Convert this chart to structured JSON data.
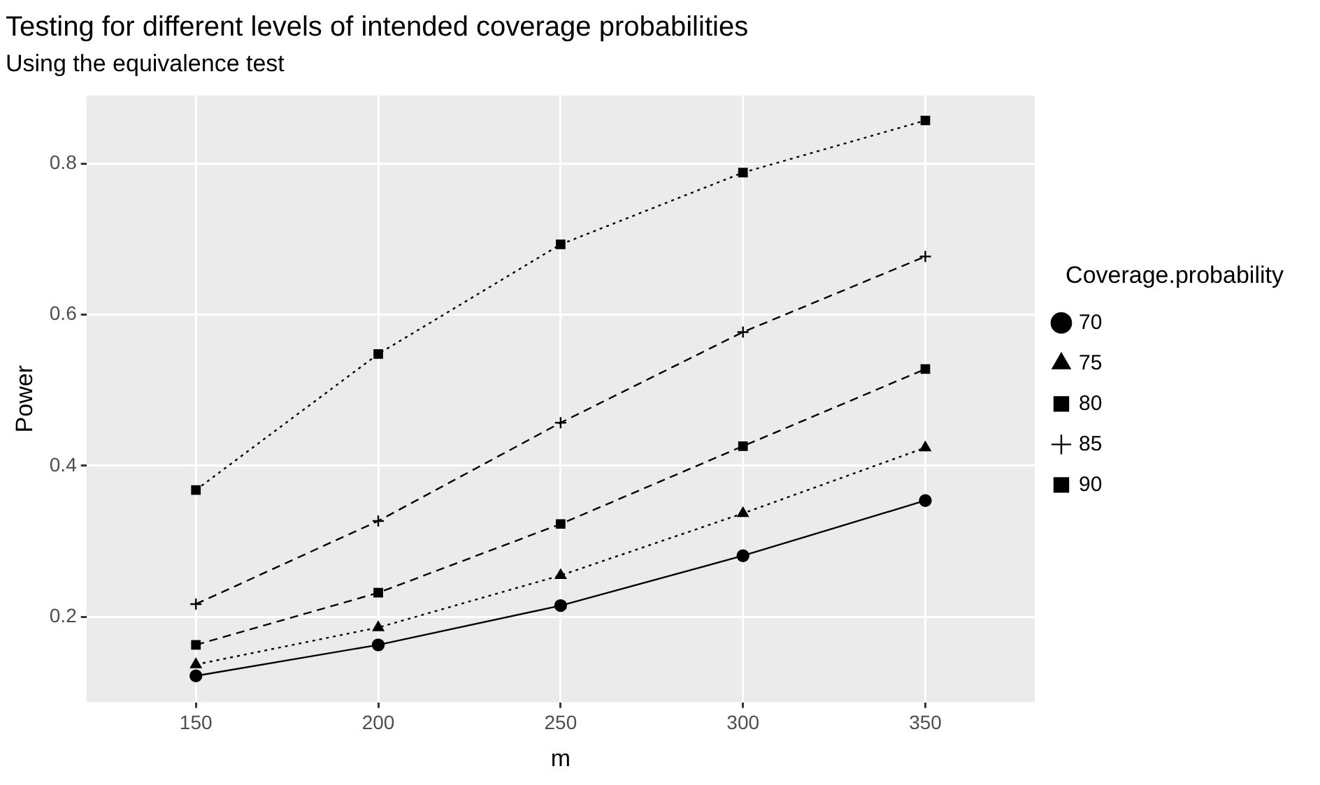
{
  "chart_data": {
    "type": "line",
    "title": "Testing for different levels of intended coverage probabilities",
    "subtitle": "Using the equivalence test",
    "xlabel": "m",
    "ylabel": "Power",
    "legend_title": "Coverage.probability",
    "x": [
      150,
      200,
      250,
      300,
      350
    ],
    "series": [
      {
        "name": "70",
        "color": "#000000",
        "marker": "circle",
        "line_style": "solid",
        "values": [
          0.122,
          0.163,
          0.215,
          0.281,
          0.354
        ]
      },
      {
        "name": "75",
        "color": "#000000",
        "marker": "triangle",
        "line_style": "dotted",
        "values": [
          0.137,
          0.186,
          0.255,
          0.337,
          0.424
        ]
      },
      {
        "name": "80",
        "color": "#000000",
        "marker": "square",
        "line_style": "dashed",
        "values": [
          0.163,
          0.232,
          0.323,
          0.426,
          0.528
        ]
      },
      {
        "name": "85",
        "color": "#000000",
        "marker": "cross",
        "line_style": "dashed",
        "values": [
          0.217,
          0.327,
          0.457,
          0.577,
          0.677
        ]
      },
      {
        "name": "90",
        "color": "#000000",
        "marker": "square",
        "line_style": "dotted",
        "values": [
          0.368,
          0.548,
          0.693,
          0.788,
          0.857
        ]
      }
    ],
    "xlim": [
      120,
      380
    ],
    "xticks": [
      150,
      200,
      250,
      300,
      350
    ],
    "ylim": [
      0.087,
      0.89
    ],
    "yticks": [
      0.2,
      0.4,
      0.6,
      0.8
    ],
    "grid": true,
    "legend": "right"
  }
}
